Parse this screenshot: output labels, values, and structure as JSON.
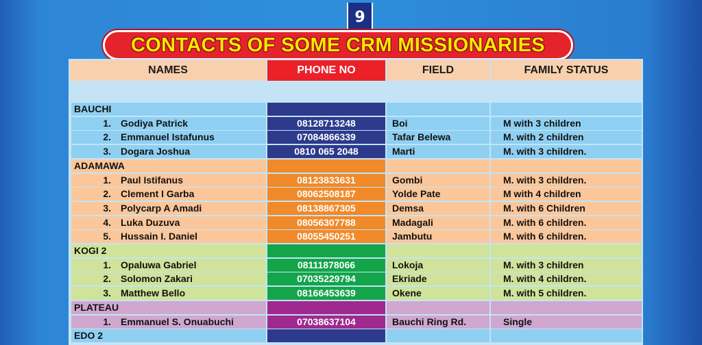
{
  "page_number": "9",
  "title": "CONTACTS OF SOME CRM MISSIONARIES",
  "headers": {
    "names": "NAMES",
    "phone": "PHONE NO",
    "field": "FIELD",
    "family": "FAMILY STATUS"
  },
  "colors": {
    "bauchi_band": "#8fd0f2",
    "bauchi_phone": "#2d3a8c",
    "adamawa_band": "#fbc79a",
    "adamawa_phone": "#f08a2a",
    "kogi_band": "#cfe39a",
    "kogi_phone": "#14a54b",
    "plateau_band": "#cfa7cf",
    "plateau_phone": "#a0298f",
    "edo_band": "#8fd0f2",
    "edo_phone": "#2d3a8c"
  },
  "rows": [
    {
      "type": "region",
      "name": "BAUCHI",
      "band": "bauchi"
    },
    {
      "type": "person",
      "band": "bauchi",
      "num": "1.",
      "name": "Godiya Patrick",
      "phone": "08128713248",
      "field": "Boi",
      "family": "M with 3 children"
    },
    {
      "type": "person",
      "band": "bauchi",
      "num": "2.",
      "name": "Emmanuel Istafunus",
      "phone": "07084866339",
      "field": "Tafar Belewa",
      "family": "M. with 2 children"
    },
    {
      "type": "person",
      "band": "bauchi",
      "num": "3.",
      "name": "Dogara Joshua",
      "phone": "0810 065 2048",
      "field": "Marti",
      "family": "M. with 3 children."
    },
    {
      "type": "region",
      "name": "ADAMAWA",
      "band": "adamawa"
    },
    {
      "type": "person",
      "band": "adamawa",
      "num": "1.",
      "name": "Paul Istifanus",
      "phone": "08123833631",
      "field": "Gombi",
      "family": "M. with 3 children."
    },
    {
      "type": "person",
      "band": "adamawa",
      "num": "2.",
      "name": "Clement I Garba",
      "phone": "08062508187",
      "field": "Yolde Pate",
      "family": "M with 4 children"
    },
    {
      "type": "person",
      "band": "adamawa",
      "num": "3.",
      "name": "Polycarp A Amadi",
      "phone": "08138867305",
      "field": "Demsa",
      "family": "M. with 6 Children"
    },
    {
      "type": "person",
      "band": "adamawa",
      "num": "4.",
      "name": "Luka Duzuva",
      "phone": "08056307788",
      "field": "Madagali",
      "family": "M. with  6 children."
    },
    {
      "type": "person",
      "band": "adamawa",
      "num": "5.",
      "name": "Hussain I. Daniel",
      "phone": "08055450251",
      "field": "Jambutu",
      "family": "M. with 6 children."
    },
    {
      "type": "region",
      "name": "KOGI 2",
      "band": "kogi"
    },
    {
      "type": "person",
      "band": "kogi",
      "num": "1.",
      "name": "Opaluwa Gabriel",
      "phone": "08111878066",
      "field": "Lokoja",
      "family": "M. with 3 children"
    },
    {
      "type": "person",
      "band": "kogi",
      "num": "2.",
      "name": "Solomon Zakari",
      "phone": "07035229794",
      "field": "Ekriade",
      "family": "M. with  4 children."
    },
    {
      "type": "person",
      "band": "kogi",
      "num": "3.",
      "name": "Matthew Bello",
      "phone": "08166453639",
      "field": "Okene",
      "family": "M. with  5 children."
    },
    {
      "type": "region",
      "name": "PLATEAU",
      "band": "plateau"
    },
    {
      "type": "person",
      "band": "plateau",
      "num": "1.",
      "name": "Emmanuel S. Onuabuchi",
      "phone": "07038637104",
      "field": "Bauchi Ring Rd.",
      "family": "Single"
    },
    {
      "type": "region",
      "name": "EDO 2",
      "band": "edo"
    }
  ]
}
